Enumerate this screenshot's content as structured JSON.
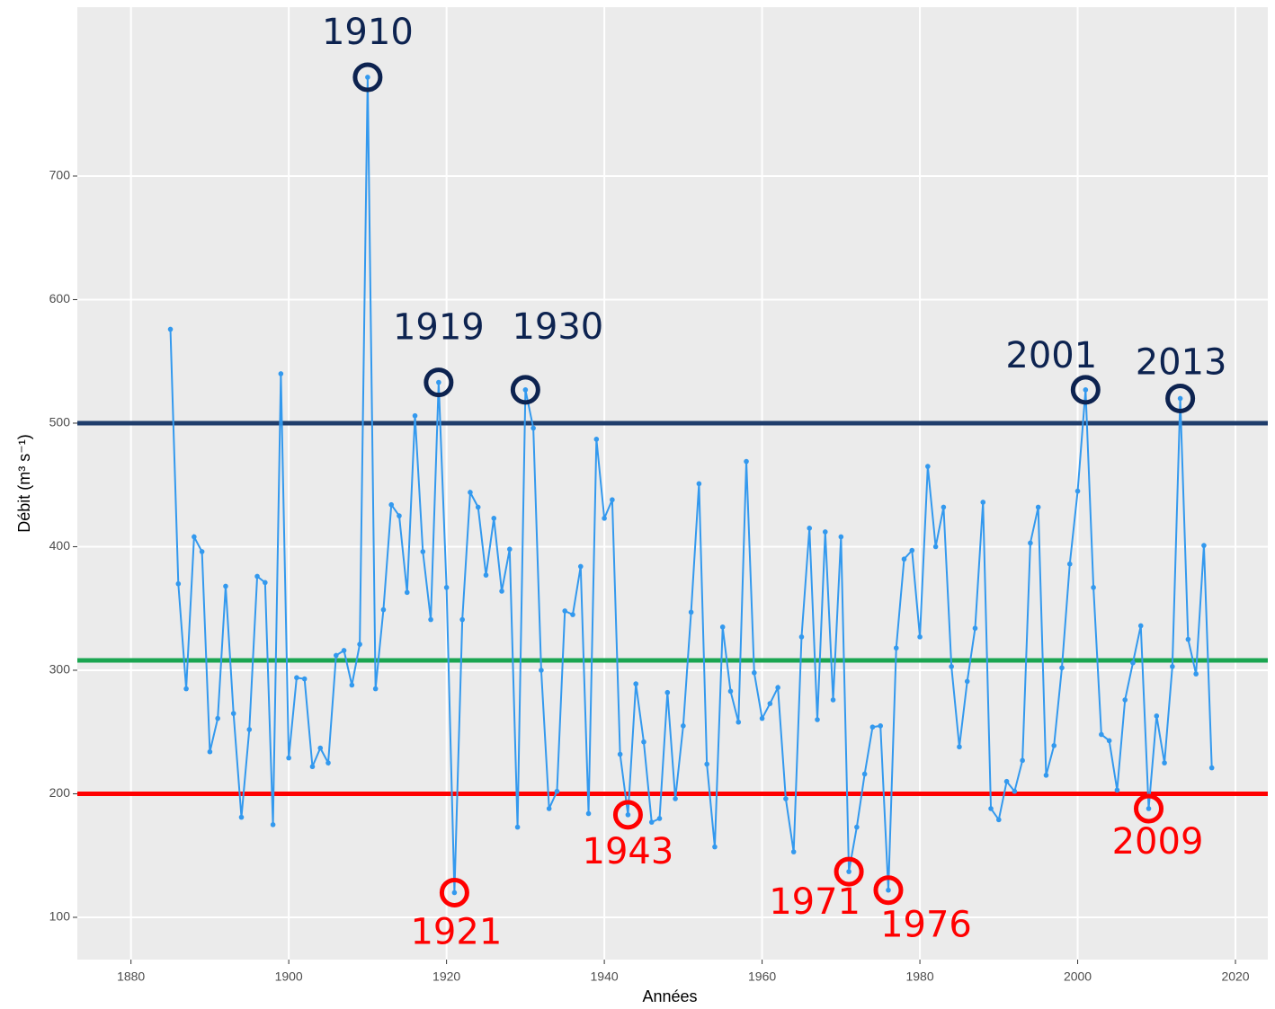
{
  "chart_data": {
    "type": "line",
    "x_label": "Années",
    "y_label": "Débit (m³ s⁻¹)",
    "x": [
      1885,
      1886,
      1887,
      1888,
      1889,
      1890,
      1891,
      1892,
      1893,
      1894,
      1895,
      1896,
      1897,
      1898,
      1899,
      1900,
      1901,
      1902,
      1903,
      1904,
      1905,
      1906,
      1907,
      1908,
      1909,
      1910,
      1911,
      1912,
      1913,
      1914,
      1915,
      1916,
      1917,
      1918,
      1919,
      1920,
      1921,
      1922,
      1923,
      1924,
      1925,
      1926,
      1927,
      1928,
      1929,
      1930,
      1931,
      1932,
      1933,
      1934,
      1935,
      1936,
      1937,
      1938,
      1939,
      1940,
      1941,
      1942,
      1943,
      1944,
      1945,
      1946,
      1947,
      1948,
      1949,
      1950,
      1951,
      1952,
      1953,
      1954,
      1955,
      1956,
      1957,
      1958,
      1959,
      1960,
      1961,
      1962,
      1963,
      1964,
      1965,
      1966,
      1967,
      1968,
      1969,
      1970,
      1971,
      1972,
      1973,
      1974,
      1975,
      1976,
      1977,
      1978,
      1979,
      1980,
      1981,
      1982,
      1983,
      1984,
      1985,
      1986,
      1987,
      1988,
      1989,
      1990,
      1991,
      1992,
      1993,
      1994,
      1995,
      1996,
      1997,
      1998,
      1999,
      2000,
      2001,
      2002,
      2003,
      2004,
      2005,
      2006,
      2007,
      2008,
      2009,
      2010,
      2011,
      2012,
      2013,
      2014,
      2015,
      2016,
      2017
    ],
    "series": [
      {
        "color": "#3399ee",
        "values": [
          576,
          370,
          285,
          408,
          396,
          234,
          261,
          368,
          265,
          181,
          252,
          376,
          371,
          175,
          540,
          229,
          294,
          293,
          222,
          237,
          225,
          312,
          316,
          288,
          321,
          780,
          285,
          349,
          434,
          425,
          363,
          506,
          396,
          341,
          533,
          367,
          120,
          341,
          444,
          432,
          377,
          423,
          364,
          398,
          173,
          527,
          496,
          300,
          188,
          202,
          348,
          345,
          384,
          184,
          487,
          423,
          438,
          232,
          183,
          289,
          242,
          177,
          180,
          282,
          196,
          255,
          347,
          451,
          224,
          157,
          335,
          283,
          258,
          469,
          298,
          261,
          273,
          286,
          196,
          153,
          327,
          415,
          260,
          412,
          276,
          408,
          137,
          173,
          216,
          254,
          255,
          122,
          318,
          390,
          397,
          327,
          465,
          400,
          432,
          303,
          238,
          291,
          334,
          436,
          188,
          179,
          210,
          202,
          227,
          403,
          432,
          215,
          239,
          302,
          386,
          445,
          527,
          367,
          248,
          243,
          203,
          276,
          306,
          336,
          188,
          263,
          225,
          303,
          520,
          325,
          297,
          401,
          221
        ]
      }
    ],
    "hlines": [
      {
        "value": 500,
        "color": "#1f3d6b"
      },
      {
        "value": 308,
        "color": "#1aa550"
      },
      {
        "value": 200,
        "color": "#ff0000"
      }
    ],
    "high_years": [
      1910,
      1919,
      1930,
      2001,
      2013
    ],
    "high_color": "#0d2350",
    "low_years": [
      1921,
      1943,
      1971,
      1976,
      2009
    ],
    "low_color": "#ff0000",
    "xlim": [
      1873.2,
      2024.1
    ],
    "ylim": [
      65.8,
      836.7
    ],
    "xticks": [
      1880,
      1900,
      1920,
      1940,
      1960,
      1980,
      2000,
      2020
    ],
    "yticks": [
      100,
      200,
      300,
      400,
      500,
      600,
      700
    ],
    "grid": true
  }
}
